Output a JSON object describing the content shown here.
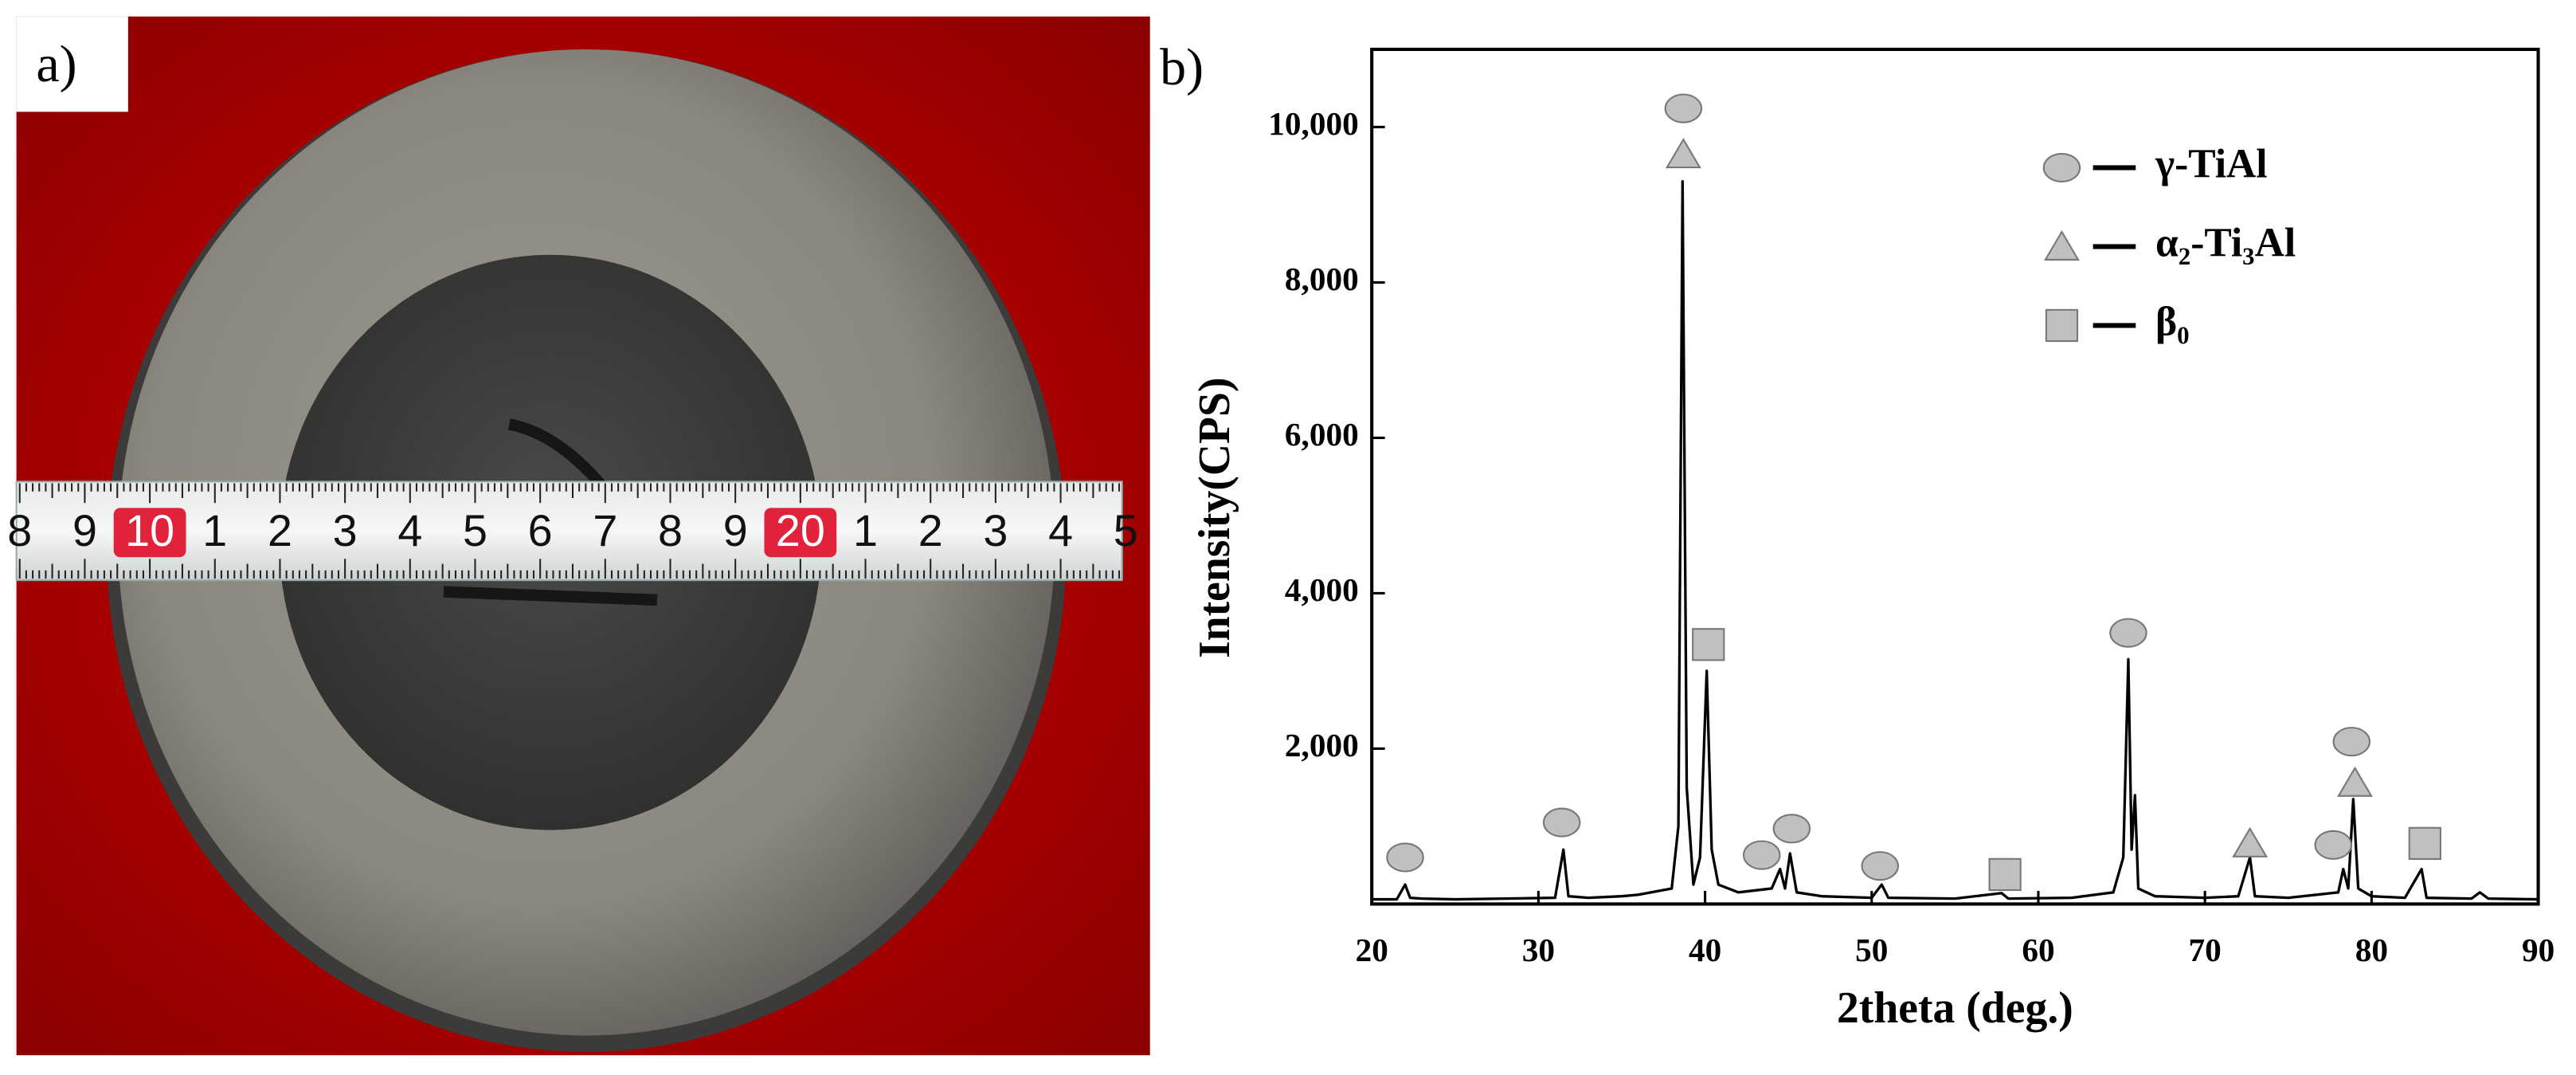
{
  "panels": {
    "a": "a)",
    "b": "b)"
  },
  "photo": {
    "ruler_labels": [
      "8",
      "9",
      "10",
      "1",
      "2",
      "3",
      "4",
      "5",
      "6",
      "7",
      "8",
      "9",
      "20",
      "1",
      "2",
      "3",
      "4",
      "5"
    ]
  },
  "chart_data": {
    "type": "line",
    "xlabel": "2theta (deg.)",
    "ylabel": "Intensity(CPS)",
    "xlim": [
      20,
      90
    ],
    "xticks": [
      20,
      30,
      40,
      50,
      60,
      70,
      80,
      90
    ],
    "ylim": [
      0,
      11000
    ],
    "yticks": [
      {
        "value": 2000,
        "label": "2,000"
      },
      {
        "value": 4000,
        "label": "4,000"
      },
      {
        "value": 6000,
        "label": "6,000"
      },
      {
        "value": 8000,
        "label": "8,000"
      },
      {
        "value": 10000,
        "label": "10,000"
      }
    ],
    "color": "#000000",
    "x": [
      20,
      21.5,
      22,
      22.3,
      23,
      25,
      28,
      31,
      31.5,
      31.8,
      33,
      35,
      36,
      38,
      38.4,
      38.65,
      38.9,
      39.3,
      39.7,
      40.1,
      40.4,
      40.8,
      42,
      44,
      44.5,
      44.8,
      45.1,
      45.5,
      47,
      50,
      50.6,
      51,
      55,
      57.8,
      58.2,
      62,
      64.5,
      65.1,
      65.4,
      65.6,
      65.8,
      66,
      67,
      70,
      72,
      72.7,
      73,
      75,
      78,
      78.3,
      78.6,
      78.9,
      79.2,
      80,
      82,
      83,
      83.3,
      86,
      86.5,
      87,
      90
    ],
    "values": [
      60,
      60,
      250,
      80,
      70,
      60,
      70,
      80,
      700,
      100,
      80,
      100,
      120,
      200,
      1000,
      9300,
      1500,
      250,
      600,
      3000,
      700,
      250,
      150,
      200,
      450,
      200,
      650,
      150,
      100,
      80,
      250,
      80,
      70,
      140,
      70,
      80,
      150,
      600,
      3150,
      700,
      1400,
      200,
      100,
      80,
      100,
      600,
      100,
      80,
      150,
      450,
      200,
      1350,
      200,
      100,
      80,
      450,
      80,
      70,
      150,
      70,
      60
    ],
    "marker_color": "#c0c0c0",
    "legend": [
      {
        "name": "γ-TiAl",
        "symbol": "circle"
      },
      {
        "name": "α₂-Ti₃Al",
        "symbol": "triangle"
      },
      {
        "name": "β₀",
        "symbol": "square"
      }
    ],
    "markers": [
      {
        "x": 22,
        "y": 600,
        "symbol": "circle"
      },
      {
        "x": 31.4,
        "y": 1050,
        "symbol": "circle"
      },
      {
        "x": 38.7,
        "y": 10240,
        "symbol": "circle"
      },
      {
        "x": 38.7,
        "y": 9650,
        "symbol": "triangle"
      },
      {
        "x": 40.2,
        "y": 3340,
        "symbol": "square"
      },
      {
        "x": 43.4,
        "y": 630,
        "symbol": "circle"
      },
      {
        "x": 45.2,
        "y": 970,
        "symbol": "circle"
      },
      {
        "x": 50.5,
        "y": 490,
        "symbol": "circle"
      },
      {
        "x": 58,
        "y": 380,
        "symbol": "square"
      },
      {
        "x": 65.4,
        "y": 3490,
        "symbol": "circle"
      },
      {
        "x": 72.7,
        "y": 780,
        "symbol": "triangle"
      },
      {
        "x": 77.7,
        "y": 760,
        "symbol": "circle"
      },
      {
        "x": 78.8,
        "y": 2090,
        "symbol": "circle"
      },
      {
        "x": 79,
        "y": 1560,
        "symbol": "triangle"
      },
      {
        "x": 83.2,
        "y": 780,
        "symbol": "square"
      }
    ]
  }
}
